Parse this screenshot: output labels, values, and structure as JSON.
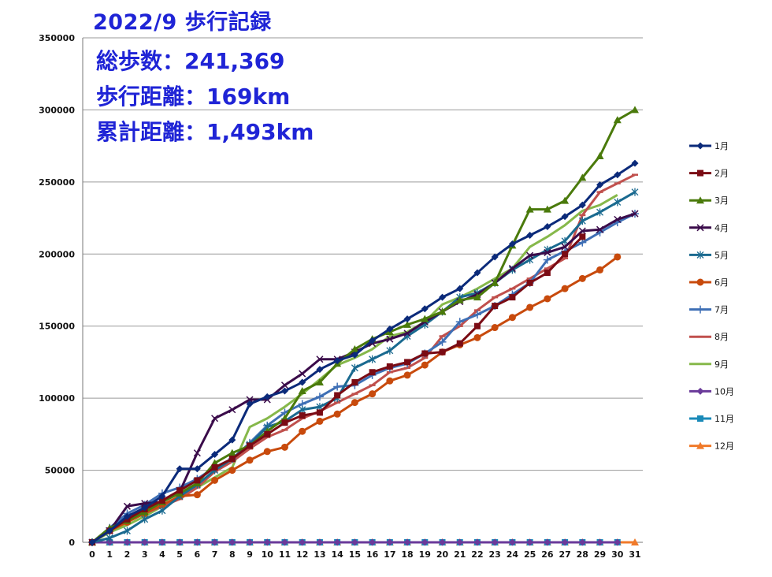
{
  "header": {
    "title": "2022/9 歩行記録",
    "total_steps": "総歩数：241,369",
    "walk_distance": "歩行距離：169km",
    "cumulative_distance": "累計距離：1,493km"
  },
  "chart_data": {
    "type": "line",
    "title": "2022/9 歩行記録",
    "xlabel": "",
    "ylabel": "",
    "x": [
      0,
      1,
      2,
      3,
      4,
      5,
      6,
      7,
      8,
      9,
      10,
      11,
      12,
      13,
      14,
      15,
      16,
      17,
      18,
      19,
      20,
      21,
      22,
      23,
      24,
      25,
      26,
      27,
      28,
      29,
      30,
      31
    ],
    "xlim": [
      0,
      31
    ],
    "ylim": [
      0,
      350000
    ],
    "yticks": [
      0,
      50000,
      100000,
      150000,
      200000,
      250000,
      300000,
      350000
    ],
    "grid": true,
    "legend_position": "right",
    "series": [
      {
        "name": "1月",
        "color": "#0b2a7a",
        "marker": "diamond",
        "values": [
          0,
          8000,
          18000,
          24000,
          32000,
          51000,
          51000,
          61000,
          71000,
          96000,
          101000,
          105000,
          111000,
          120000,
          126000,
          130000,
          140000,
          148000,
          155000,
          162000,
          170000,
          176000,
          187000,
          198000,
          207000,
          213000,
          219000,
          226000,
          234000,
          248000,
          255000,
          263000
        ]
      },
      {
        "name": "2月",
        "color": "#7a0b14",
        "marker": "square",
        "values": [
          0,
          8000,
          16000,
          23000,
          29000,
          36000,
          43000,
          52000,
          58000,
          67000,
          75000,
          83000,
          88000,
          90000,
          102000,
          111000,
          118000,
          122000,
          125000,
          131000,
          132000,
          138000,
          150000,
          164000,
          170000,
          180000,
          187000,
          200000,
          212000,
          null,
          null,
          null
        ]
      },
      {
        "name": "3月",
        "color": "#4a7a0b",
        "marker": "triangle",
        "values": [
          0,
          10000,
          15000,
          21000,
          28000,
          34000,
          41000,
          55000,
          62000,
          67000,
          77000,
          86000,
          105000,
          111000,
          124000,
          134000,
          141000,
          146000,
          151000,
          155000,
          160000,
          168000,
          170000,
          180000,
          206000,
          231000,
          231000,
          237000,
          253000,
          268000,
          293000,
          300000
        ]
      },
      {
        "name": "4月",
        "color": "#3a0b4a",
        "marker": "x",
        "values": [
          0,
          8000,
          25000,
          27000,
          28000,
          35000,
          62000,
          86000,
          92000,
          99000,
          99000,
          109000,
          117000,
          127000,
          127000,
          132000,
          138000,
          141000,
          145000,
          153000,
          160000,
          167000,
          172000,
          180000,
          190000,
          199000,
          201000,
          205000,
          216000,
          217000,
          224000,
          228000
        ]
      },
      {
        "name": "5月",
        "color": "#1a6a90",
        "marker": "asterisk",
        "values": [
          0,
          3000,
          8000,
          16000,
          22000,
          32000,
          40000,
          50000,
          58000,
          68000,
          80000,
          84000,
          92000,
          94000,
          100000,
          121000,
          127000,
          133000,
          143000,
          151000,
          160000,
          170000,
          173000,
          180000,
          189000,
          196000,
          203000,
          209000,
          223000,
          229000,
          236000,
          243000
        ]
      },
      {
        "name": "6月",
        "color": "#c84a0c",
        "marker": "circle",
        "values": [
          0,
          8000,
          14000,
          20000,
          26000,
          32000,
          33000,
          43000,
          50000,
          57000,
          63000,
          66000,
          77000,
          84000,
          89000,
          97000,
          103000,
          112000,
          116000,
          123000,
          132000,
          137000,
          142000,
          149000,
          156000,
          163000,
          169000,
          176000,
          183000,
          189000,
          198000,
          null
        ]
      },
      {
        "name": "7月",
        "color": "#3e6fb5",
        "marker": "plus",
        "values": [
          0,
          10000,
          20000,
          26000,
          34000,
          38000,
          44000,
          52000,
          58000,
          69000,
          81000,
          90000,
          96000,
          101000,
          108000,
          109000,
          116000,
          121000,
          124000,
          131000,
          139000,
          153000,
          158000,
          164000,
          172000,
          180000,
          196000,
          202000,
          208000,
          215000,
          222000,
          228000
        ]
      },
      {
        "name": "8月",
        "color": "#c0504d",
        "marker": "dash",
        "values": [
          0,
          8000,
          15000,
          20000,
          25000,
          30000,
          38000,
          49000,
          56000,
          65000,
          73000,
          78000,
          86000,
          91000,
          97000,
          103000,
          109000,
          118000,
          121000,
          128000,
          143000,
          150000,
          161000,
          170000,
          176000,
          183000,
          190000,
          197000,
          227000,
          243000,
          249000,
          255000
        ]
      },
      {
        "name": "9月",
        "color": "#86b84a",
        "marker": "none",
        "values": [
          0,
          7000,
          12000,
          18000,
          25000,
          31000,
          38000,
          45000,
          52000,
          80000,
          86000,
          94000,
          103000,
          113000,
          123000,
          128000,
          134000,
          143000,
          146000,
          153000,
          165000,
          170000,
          176000,
          183000,
          190000,
          205000,
          212000,
          220000,
          230000,
          234000,
          241000,
          null
        ]
      },
      {
        "name": "10月",
        "color": "#6a3a9a",
        "marker": "diamond",
        "values": [
          0,
          0,
          0,
          0,
          0,
          0,
          0,
          0,
          0,
          0,
          0,
          0,
          0,
          0,
          0,
          0,
          0,
          0,
          0,
          0,
          0,
          0,
          0,
          0,
          0,
          0,
          0,
          0,
          0,
          0,
          0,
          null
        ]
      },
      {
        "name": "11月",
        "color": "#1a8ab8",
        "marker": "square",
        "values": [
          0,
          0,
          0,
          0,
          0,
          0,
          0,
          0,
          0,
          0,
          0,
          0,
          0,
          0,
          0,
          0,
          0,
          0,
          0,
          0,
          0,
          0,
          0,
          0,
          0,
          0,
          0,
          0,
          0,
          0,
          0,
          null
        ]
      },
      {
        "name": "12月",
        "color": "#f07a2a",
        "marker": "triangle",
        "values": [
          0,
          0,
          0,
          0,
          0,
          0,
          0,
          0,
          0,
          0,
          0,
          0,
          0,
          0,
          0,
          0,
          0,
          0,
          0,
          0,
          0,
          0,
          0,
          0,
          0,
          0,
          0,
          0,
          0,
          0,
          0,
          0
        ]
      }
    ]
  }
}
